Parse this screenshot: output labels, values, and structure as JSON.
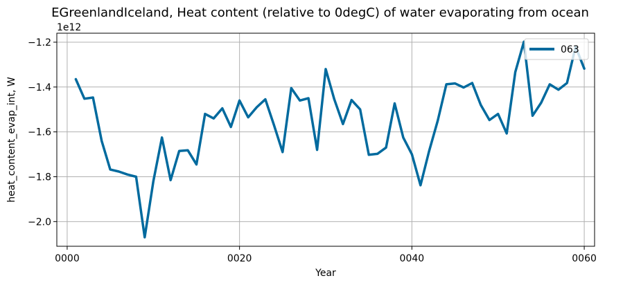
{
  "chart_data": {
    "type": "line",
    "title": "EGreenlandIceland, Heat content (relative to 0degC) of water evaporating from ocean",
    "xlabel": "Year",
    "ylabel": "heat_content_evap_int, W",
    "y_offset_label": "1e12",
    "x_tick_labels": [
      "0000",
      "0020",
      "0040",
      "0060"
    ],
    "x_ticks": [
      0,
      20,
      40,
      60
    ],
    "y_ticks": [
      -2.0,
      -1.8,
      -1.6,
      -1.4,
      -1.2
    ],
    "y_tick_labels": [
      "−2.0",
      "−1.8",
      "−1.6",
      "−1.4",
      "−1.2"
    ],
    "xlim": [
      -1.2,
      61.2
    ],
    "ylim": [
      -2.11,
      -1.16
    ],
    "grid": true,
    "legend_position": "top-right",
    "series": [
      {
        "name": "063",
        "color": "#006a9e",
        "x": [
          1,
          2,
          3,
          4,
          5,
          6,
          7,
          8,
          9,
          10,
          11,
          12,
          13,
          14,
          15,
          16,
          17,
          18,
          19,
          20,
          21,
          22,
          23,
          24,
          25,
          26,
          27,
          28,
          29,
          30,
          31,
          32,
          33,
          34,
          35,
          36,
          37,
          38,
          39,
          40,
          41,
          42,
          43,
          44,
          45,
          46,
          47,
          48,
          49,
          50,
          51,
          52,
          53,
          54,
          55,
          56,
          57,
          58,
          59,
          60
        ],
        "values": [
          -1.365,
          -1.452,
          -1.447,
          -1.64,
          -1.768,
          -1.777,
          -1.79,
          -1.8,
          -2.07,
          -1.82,
          -1.625,
          -1.815,
          -1.685,
          -1.682,
          -1.745,
          -1.52,
          -1.54,
          -1.495,
          -1.578,
          -1.46,
          -1.535,
          -1.49,
          -1.455,
          -1.57,
          -1.69,
          -1.405,
          -1.46,
          -1.45,
          -1.68,
          -1.32,
          -1.455,
          -1.565,
          -1.458,
          -1.5,
          -1.702,
          -1.698,
          -1.67,
          -1.473,
          -1.625,
          -1.7,
          -1.838,
          -1.686,
          -1.55,
          -1.388,
          -1.384,
          -1.402,
          -1.382,
          -1.48,
          -1.547,
          -1.52,
          -1.607,
          -1.333,
          -1.198,
          -1.528,
          -1.47,
          -1.388,
          -1.412,
          -1.382,
          -1.22,
          -1.318
        ]
      }
    ]
  }
}
